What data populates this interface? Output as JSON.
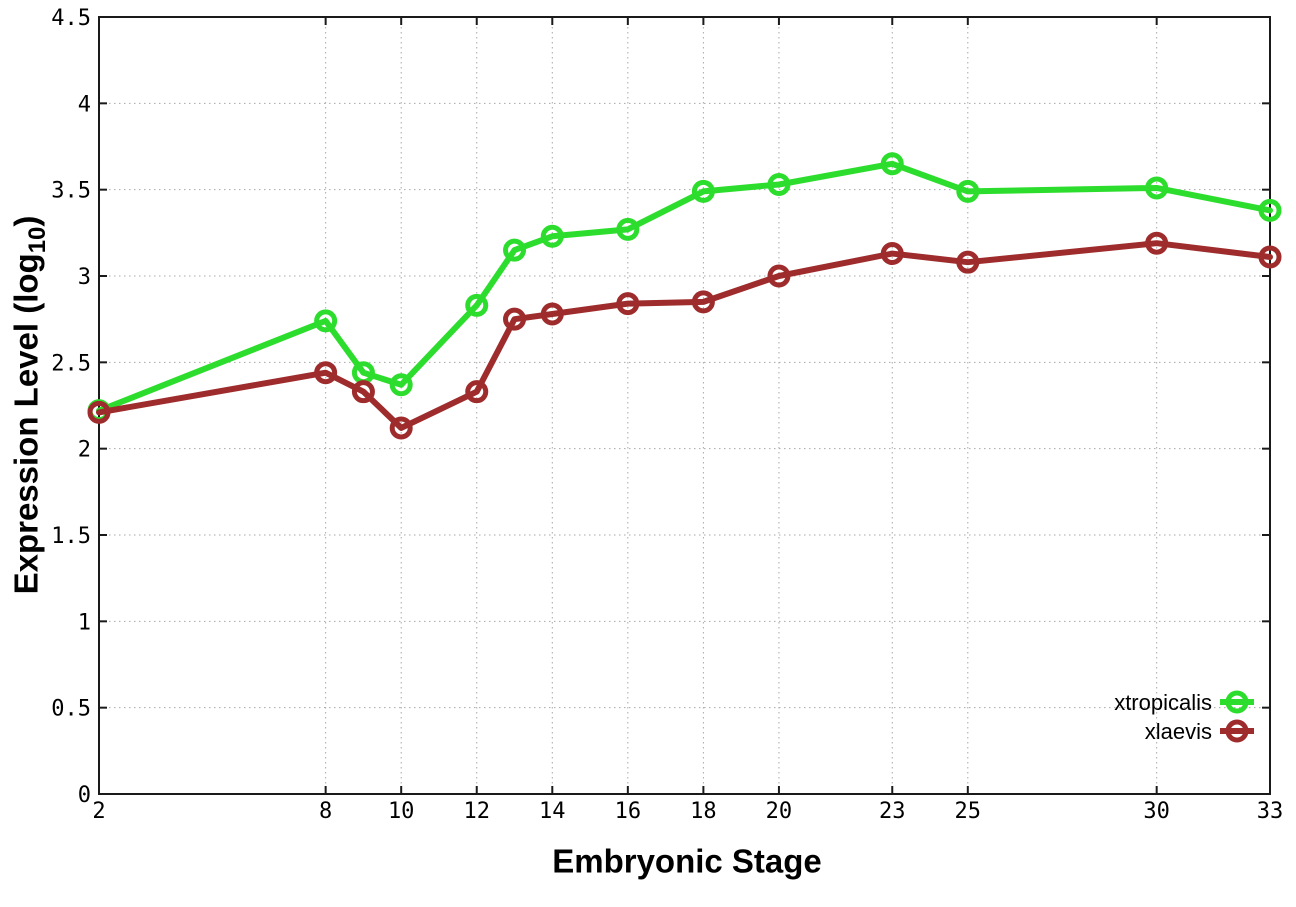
{
  "figure": {
    "xlabel": "Embryonic Stage",
    "ylabel_main": "Expression Level (log",
    "ylabel_sub": "10",
    "ylabel_end": ")"
  },
  "chart_data": {
    "type": "line",
    "title": "",
    "xlabel": "Embryonic Stage",
    "ylabel": "Expression Level (log10)",
    "grid": true,
    "legend_position": "bottom-right",
    "x_axis": {
      "min": 2,
      "max": 33,
      "ticks": [
        2,
        8,
        10,
        12,
        14,
        16,
        18,
        20,
        23,
        25,
        30,
        33
      ],
      "tick_labels": [
        "2",
        "8",
        "10",
        "12",
        "14",
        "16",
        "18",
        "20",
        "23",
        "25",
        "30",
        "33"
      ]
    },
    "y_axis": {
      "min": 0,
      "max": 4.5,
      "ticks": [
        0,
        0.5,
        1,
        1.5,
        2,
        2.5,
        3,
        3.5,
        4,
        4.5
      ],
      "tick_labels": [
        "0",
        "0.5",
        "1",
        "1.5",
        "2",
        "2.5",
        "3",
        "3.5",
        "4",
        "4.5"
      ]
    },
    "x": [
      2,
      8,
      9,
      10,
      12,
      13,
      14,
      16,
      18,
      20,
      23,
      25,
      30,
      33
    ],
    "series": [
      {
        "name": "xtropicalis",
        "color": "#2ddd2d",
        "marker": "open-circle",
        "values": [
          2.22,
          2.74,
          2.44,
          2.37,
          2.83,
          3.15,
          3.23,
          3.27,
          3.49,
          3.53,
          3.65,
          3.49,
          3.51,
          3.38
        ]
      },
      {
        "name": "xlaevis",
        "color": "#9f2c2c",
        "marker": "open-circle",
        "values": [
          2.21,
          2.44,
          2.33,
          2.12,
          2.33,
          2.75,
          2.78,
          2.84,
          2.85,
          3.0,
          3.13,
          3.08,
          3.19,
          3.11
        ]
      }
    ],
    "style": {
      "grid_color": "#a8a8a8",
      "axis_color": "#1a1a1a",
      "text_color": "#000000",
      "line_width": 6,
      "marker_radius": 9,
      "marker_stroke": 5
    }
  }
}
